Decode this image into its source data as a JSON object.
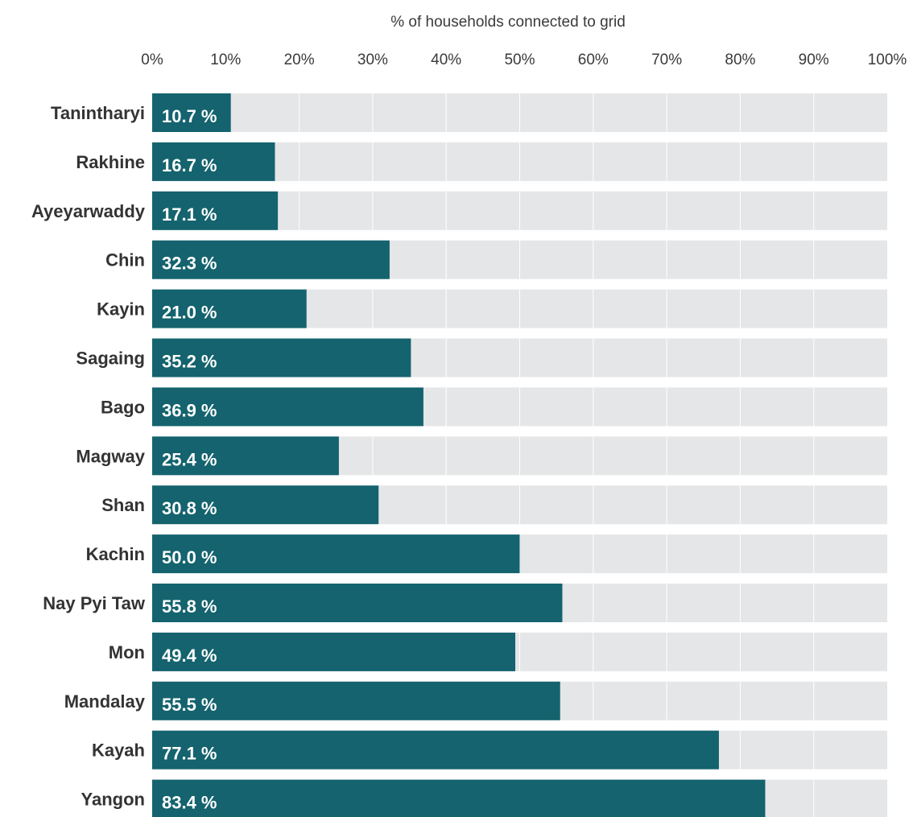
{
  "chart_data": {
    "type": "bar",
    "orientation": "horizontal",
    "xlabel": "% of households connected to grid",
    "ylabel": "",
    "title": "",
    "xlim": [
      0,
      100
    ],
    "xticks": [
      0,
      10,
      20,
      30,
      40,
      50,
      60,
      70,
      80,
      90,
      100
    ],
    "tick_suffix": "%",
    "value_suffix": " %",
    "axis_position": "top",
    "grid": true,
    "legend": "none",
    "categories": [
      "Tanintharyi",
      "Rakhine",
      "Ayeyarwaddy",
      "Chin",
      "Kayin",
      "Sagaing",
      "Bago",
      "Magway",
      "Shan",
      "Kachin",
      "Nay Pyi Taw",
      "Mon",
      "Mandalay",
      "Kayah",
      "Yangon"
    ],
    "values": [
      10.7,
      16.7,
      17.1,
      32.3,
      21.0,
      35.2,
      36.9,
      25.4,
      30.8,
      50.0,
      55.8,
      49.4,
      55.5,
      77.1,
      83.4
    ],
    "colors": {
      "bar": "#14636e",
      "track": "#e5e6e8",
      "grid": "#ffffff",
      "value_text": "#ffffff",
      "label_text": "#333333"
    }
  }
}
